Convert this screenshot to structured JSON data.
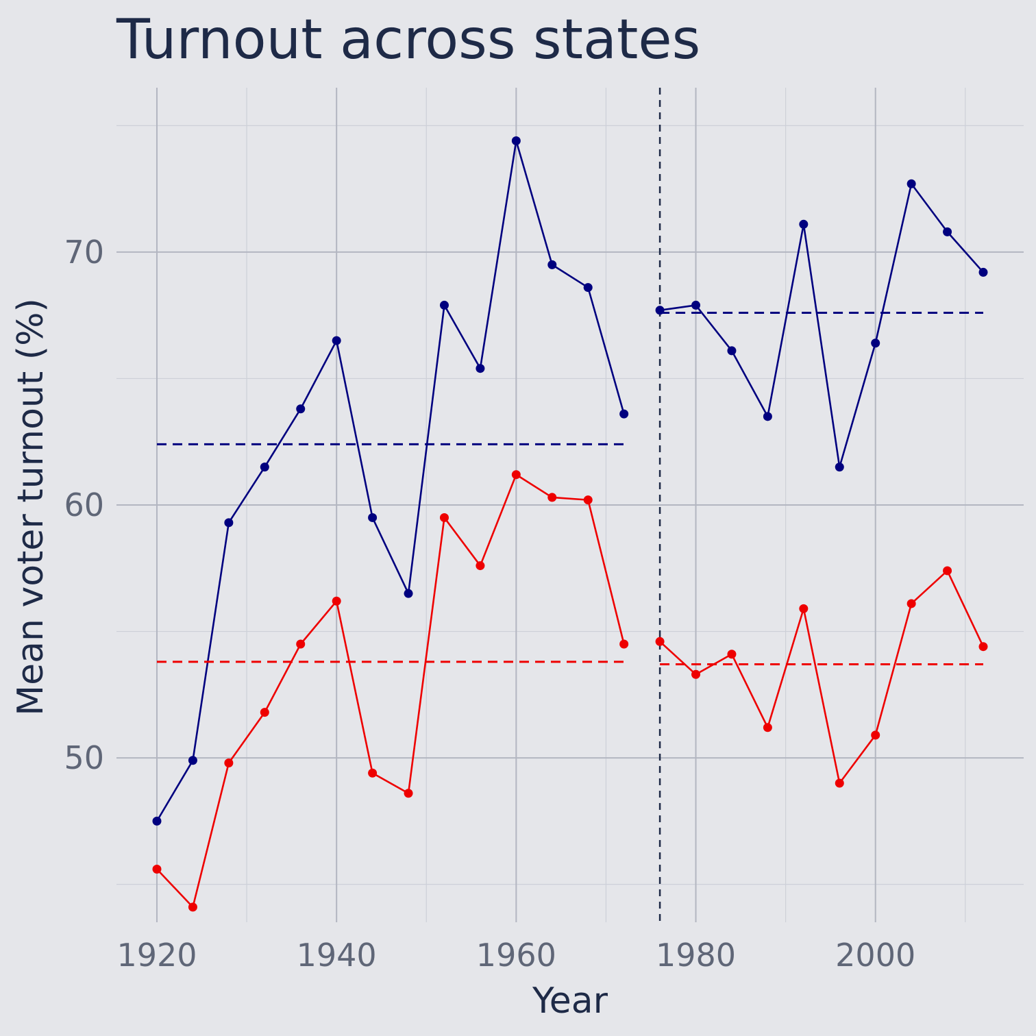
{
  "chart_data": {
    "type": "line",
    "title": "Turnout across states",
    "xlabel": "Year",
    "ylabel": "Mean voter turnout (%)",
    "xlim": [
      1915.5,
      2016.5
    ],
    "ylim": [
      43.5,
      76.5
    ],
    "x_ticks": [
      1920,
      1940,
      1960,
      1980,
      2000
    ],
    "x_tick_labels": [
      "1920",
      "1940",
      "1960",
      "1980",
      "2000"
    ],
    "y_ticks": [
      50,
      60,
      70
    ],
    "y_tick_labels": [
      "50",
      "60",
      "70"
    ],
    "grid": true,
    "legend": "none",
    "vertical_reference_line": 1976,
    "series": [
      {
        "color": "#00007f",
        "segments": [
          {
            "x": [
              1920,
              1924,
              1928,
              1932,
              1936,
              1940,
              1944,
              1948,
              1952,
              1956,
              1960,
              1964,
              1968,
              1972
            ],
            "y": [
              47.5,
              49.9,
              59.3,
              61.5,
              63.8,
              66.5,
              59.5,
              56.5,
              67.9,
              65.4,
              74.4,
              69.5,
              68.6,
              63.6
            ]
          },
          {
            "x": [
              1976,
              1980,
              1984,
              1988,
              1992,
              1996,
              2000,
              2004,
              2008,
              2012
            ],
            "y": [
              67.7,
              67.9,
              66.1,
              63.5,
              71.1,
              61.5,
              66.4,
              72.7,
              70.8,
              69.2
            ]
          }
        ],
        "means": [
          {
            "x": [
              1920,
              1972
            ],
            "y": 62.4
          },
          {
            "x": [
              1976,
              2012
            ],
            "y": 67.6
          }
        ]
      },
      {
        "color": "#ee0000",
        "segments": [
          {
            "x": [
              1920,
              1924,
              1928,
              1932,
              1936,
              1940,
              1944,
              1948,
              1952,
              1956,
              1960,
              1964,
              1968,
              1972
            ],
            "y": [
              45.6,
              44.1,
              49.8,
              51.8,
              54.5,
              56.2,
              49.4,
              48.6,
              59.5,
              57.6,
              61.2,
              60.3,
              60.2,
              54.5
            ]
          },
          {
            "x": [
              1976,
              1980,
              1984,
              1988,
              1992,
              1996,
              2000,
              2004,
              2008,
              2012
            ],
            "y": [
              54.6,
              53.3,
              54.1,
              51.2,
              55.9,
              49.0,
              50.9,
              56.1,
              57.4,
              54.4
            ]
          }
        ],
        "means": [
          {
            "x": [
              1920,
              1972
            ],
            "y": 53.8
          },
          {
            "x": [
              1976,
              2012
            ],
            "y": 53.7
          }
        ]
      }
    ]
  }
}
